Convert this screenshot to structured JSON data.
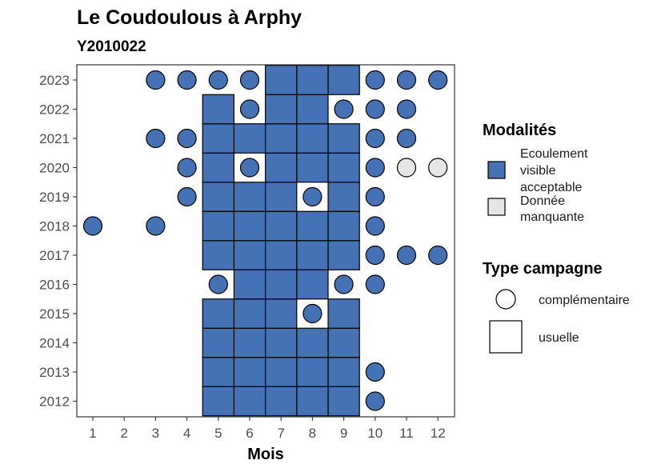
{
  "chart_data": {
    "type": "heatmap",
    "title": "Le Coudoulous à Arphy",
    "subtitle": "Y2010022",
    "xlabel": "Mois",
    "ylabel": "",
    "x_ticks": [
      "1",
      "2",
      "3",
      "4",
      "5",
      "6",
      "7",
      "8",
      "9",
      "10",
      "11",
      "12"
    ],
    "y_ticks": [
      "2012",
      "2013",
      "2014",
      "2015",
      "2016",
      "2017",
      "2018",
      "2019",
      "2020",
      "2021",
      "2022",
      "2023"
    ],
    "colors": {
      "ecoulement": "#4472b4",
      "manquante": "#e6e6e6",
      "outline": "#000000",
      "panel_border": "#333333"
    },
    "points": [
      {
        "year": 2023,
        "month": 3,
        "value": "Ecoulement visible acceptable",
        "campagne": "complémentaire"
      },
      {
        "year": 2023,
        "month": 4,
        "value": "Ecoulement visible acceptable",
        "campagne": "complémentaire"
      },
      {
        "year": 2023,
        "month": 5,
        "value": "Ecoulement visible acceptable",
        "campagne": "complémentaire"
      },
      {
        "year": 2023,
        "month": 6,
        "value": "Ecoulement visible acceptable",
        "campagne": "complémentaire"
      },
      {
        "year": 2023,
        "month": 7,
        "value": "Ecoulement visible acceptable",
        "campagne": "usuelle"
      },
      {
        "year": 2023,
        "month": 8,
        "value": "Ecoulement visible acceptable",
        "campagne": "usuelle"
      },
      {
        "year": 2023,
        "month": 9,
        "value": "Ecoulement visible acceptable",
        "campagne": "usuelle"
      },
      {
        "year": 2023,
        "month": 10,
        "value": "Ecoulement visible acceptable",
        "campagne": "complémentaire"
      },
      {
        "year": 2023,
        "month": 11,
        "value": "Ecoulement visible acceptable",
        "campagne": "complémentaire"
      },
      {
        "year": 2023,
        "month": 12,
        "value": "Ecoulement visible acceptable",
        "campagne": "complémentaire"
      },
      {
        "year": 2022,
        "month": 5,
        "value": "Ecoulement visible acceptable",
        "campagne": "usuelle"
      },
      {
        "year": 2022,
        "month": 6,
        "value": "Ecoulement visible acceptable",
        "campagne": "complémentaire"
      },
      {
        "year": 2022,
        "month": 7,
        "value": "Ecoulement visible acceptable",
        "campagne": "usuelle"
      },
      {
        "year": 2022,
        "month": 8,
        "value": "Ecoulement visible acceptable",
        "campagne": "usuelle"
      },
      {
        "year": 2022,
        "month": 9,
        "value": "Ecoulement visible acceptable",
        "campagne": "complémentaire"
      },
      {
        "year": 2022,
        "month": 10,
        "value": "Ecoulement visible acceptable",
        "campagne": "complémentaire"
      },
      {
        "year": 2022,
        "month": 11,
        "value": "Ecoulement visible acceptable",
        "campagne": "complémentaire"
      },
      {
        "year": 2021,
        "month": 3,
        "value": "Ecoulement visible acceptable",
        "campagne": "complémentaire"
      },
      {
        "year": 2021,
        "month": 4,
        "value": "Ecoulement visible acceptable",
        "campagne": "complémentaire"
      },
      {
        "year": 2021,
        "month": 5,
        "value": "Ecoulement visible acceptable",
        "campagne": "usuelle"
      },
      {
        "year": 2021,
        "month": 6,
        "value": "Ecoulement visible acceptable",
        "campagne": "usuelle"
      },
      {
        "year": 2021,
        "month": 7,
        "value": "Ecoulement visible acceptable",
        "campagne": "usuelle"
      },
      {
        "year": 2021,
        "month": 8,
        "value": "Ecoulement visible acceptable",
        "campagne": "usuelle"
      },
      {
        "year": 2021,
        "month": 9,
        "value": "Ecoulement visible acceptable",
        "campagne": "usuelle"
      },
      {
        "year": 2021,
        "month": 10,
        "value": "Ecoulement visible acceptable",
        "campagne": "complémentaire"
      },
      {
        "year": 2021,
        "month": 11,
        "value": "Ecoulement visible acceptable",
        "campagne": "complémentaire"
      },
      {
        "year": 2020,
        "month": 4,
        "value": "Ecoulement visible acceptable",
        "campagne": "complémentaire"
      },
      {
        "year": 2020,
        "month": 5,
        "value": "Ecoulement visible acceptable",
        "campagne": "usuelle"
      },
      {
        "year": 2020,
        "month": 6,
        "value": "Ecoulement visible acceptable",
        "campagne": "complémentaire"
      },
      {
        "year": 2020,
        "month": 7,
        "value": "Ecoulement visible acceptable",
        "campagne": "usuelle"
      },
      {
        "year": 2020,
        "month": 8,
        "value": "Ecoulement visible acceptable",
        "campagne": "usuelle"
      },
      {
        "year": 2020,
        "month": 9,
        "value": "Ecoulement visible acceptable",
        "campagne": "usuelle"
      },
      {
        "year": 2020,
        "month": 10,
        "value": "Ecoulement visible acceptable",
        "campagne": "complémentaire"
      },
      {
        "year": 2020,
        "month": 11,
        "value": "Donnée manquante",
        "campagne": "complémentaire"
      },
      {
        "year": 2020,
        "month": 12,
        "value": "Donnée manquante",
        "campagne": "complémentaire"
      },
      {
        "year": 2019,
        "month": 4,
        "value": "Ecoulement visible acceptable",
        "campagne": "complémentaire"
      },
      {
        "year": 2019,
        "month": 5,
        "value": "Ecoulement visible acceptable",
        "campagne": "usuelle"
      },
      {
        "year": 2019,
        "month": 6,
        "value": "Ecoulement visible acceptable",
        "campagne": "usuelle"
      },
      {
        "year": 2019,
        "month": 7,
        "value": "Ecoulement visible acceptable",
        "campagne": "usuelle"
      },
      {
        "year": 2019,
        "month": 8,
        "value": "Ecoulement visible acceptable",
        "campagne": "complémentaire"
      },
      {
        "year": 2019,
        "month": 9,
        "value": "Ecoulement visible acceptable",
        "campagne": "usuelle"
      },
      {
        "year": 2019,
        "month": 10,
        "value": "Ecoulement visible acceptable",
        "campagne": "complémentaire"
      },
      {
        "year": 2018,
        "month": 1,
        "value": "Ecoulement visible acceptable",
        "campagne": "complémentaire"
      },
      {
        "year": 2018,
        "month": 3,
        "value": "Ecoulement visible acceptable",
        "campagne": "complémentaire"
      },
      {
        "year": 2018,
        "month": 5,
        "value": "Ecoulement visible acceptable",
        "campagne": "usuelle"
      },
      {
        "year": 2018,
        "month": 6,
        "value": "Ecoulement visible acceptable",
        "campagne": "usuelle"
      },
      {
        "year": 2018,
        "month": 7,
        "value": "Ecoulement visible acceptable",
        "campagne": "usuelle"
      },
      {
        "year": 2018,
        "month": 8,
        "value": "Ecoulement visible acceptable",
        "campagne": "usuelle"
      },
      {
        "year": 2018,
        "month": 9,
        "value": "Ecoulement visible acceptable",
        "campagne": "usuelle"
      },
      {
        "year": 2018,
        "month": 10,
        "value": "Ecoulement visible acceptable",
        "campagne": "complémentaire"
      },
      {
        "year": 2017,
        "month": 5,
        "value": "Ecoulement visible acceptable",
        "campagne": "usuelle"
      },
      {
        "year": 2017,
        "month": 6,
        "value": "Ecoulement visible acceptable",
        "campagne": "usuelle"
      },
      {
        "year": 2017,
        "month": 7,
        "value": "Ecoulement visible acceptable",
        "campagne": "usuelle"
      },
      {
        "year": 2017,
        "month": 8,
        "value": "Ecoulement visible acceptable",
        "campagne": "usuelle"
      },
      {
        "year": 2017,
        "month": 9,
        "value": "Ecoulement visible acceptable",
        "campagne": "usuelle"
      },
      {
        "year": 2017,
        "month": 10,
        "value": "Ecoulement visible acceptable",
        "campagne": "complémentaire"
      },
      {
        "year": 2017,
        "month": 11,
        "value": "Ecoulement visible acceptable",
        "campagne": "complémentaire"
      },
      {
        "year": 2017,
        "month": 12,
        "value": "Ecoulement visible acceptable",
        "campagne": "complémentaire"
      },
      {
        "year": 2016,
        "month": 5,
        "value": "Ecoulement visible acceptable",
        "campagne": "complémentaire"
      },
      {
        "year": 2016,
        "month": 6,
        "value": "Ecoulement visible acceptable",
        "campagne": "usuelle"
      },
      {
        "year": 2016,
        "month": 7,
        "value": "Ecoulement visible acceptable",
        "campagne": "usuelle"
      },
      {
        "year": 2016,
        "month": 8,
        "value": "Ecoulement visible acceptable",
        "campagne": "usuelle"
      },
      {
        "year": 2016,
        "month": 9,
        "value": "Ecoulement visible acceptable",
        "campagne": "complémentaire"
      },
      {
        "year": 2016,
        "month": 10,
        "value": "Ecoulement visible acceptable",
        "campagne": "complémentaire"
      },
      {
        "year": 2015,
        "month": 5,
        "value": "Ecoulement visible acceptable",
        "campagne": "usuelle"
      },
      {
        "year": 2015,
        "month": 6,
        "value": "Ecoulement visible acceptable",
        "campagne": "usuelle"
      },
      {
        "year": 2015,
        "month": 7,
        "value": "Ecoulement visible acceptable",
        "campagne": "usuelle"
      },
      {
        "year": 2015,
        "month": 8,
        "value": "Ecoulement visible acceptable",
        "campagne": "complémentaire"
      },
      {
        "year": 2015,
        "month": 9,
        "value": "Ecoulement visible acceptable",
        "campagne": "usuelle"
      },
      {
        "year": 2014,
        "month": 5,
        "value": "Ecoulement visible acceptable",
        "campagne": "usuelle"
      },
      {
        "year": 2014,
        "month": 6,
        "value": "Ecoulement visible acceptable",
        "campagne": "usuelle"
      },
      {
        "year": 2014,
        "month": 7,
        "value": "Ecoulement visible acceptable",
        "campagne": "usuelle"
      },
      {
        "year": 2014,
        "month": 8,
        "value": "Ecoulement visible acceptable",
        "campagne": "usuelle"
      },
      {
        "year": 2014,
        "month": 9,
        "value": "Ecoulement visible acceptable",
        "campagne": "usuelle"
      },
      {
        "year": 2013,
        "month": 5,
        "value": "Ecoulement visible acceptable",
        "campagne": "usuelle"
      },
      {
        "year": 2013,
        "month": 6,
        "value": "Ecoulement visible acceptable",
        "campagne": "usuelle"
      },
      {
        "year": 2013,
        "month": 7,
        "value": "Ecoulement visible acceptable",
        "campagne": "usuelle"
      },
      {
        "year": 2013,
        "month": 8,
        "value": "Ecoulement visible acceptable",
        "campagne": "usuelle"
      },
      {
        "year": 2013,
        "month": 9,
        "value": "Ecoulement visible acceptable",
        "campagne": "usuelle"
      },
      {
        "year": 2013,
        "month": 10,
        "value": "Ecoulement visible acceptable",
        "campagne": "complémentaire"
      },
      {
        "year": 2012,
        "month": 5,
        "value": "Ecoulement visible acceptable",
        "campagne": "usuelle"
      },
      {
        "year": 2012,
        "month": 6,
        "value": "Ecoulement visible acceptable",
        "campagne": "usuelle"
      },
      {
        "year": 2012,
        "month": 7,
        "value": "Ecoulement visible acceptable",
        "campagne": "usuelle"
      },
      {
        "year": 2012,
        "month": 8,
        "value": "Ecoulement visible acceptable",
        "campagne": "usuelle"
      },
      {
        "year": 2012,
        "month": 9,
        "value": "Ecoulement visible acceptable",
        "campagne": "usuelle"
      },
      {
        "year": 2012,
        "month": 10,
        "value": "Ecoulement visible acceptable",
        "campagne": "complémentaire"
      }
    ],
    "legend": {
      "modalites_title": "Modalités",
      "modalites": [
        {
          "lines": [
            "Ecoulement",
            "visible",
            "acceptable"
          ],
          "value": "Ecoulement visible acceptable"
        },
        {
          "lines": [
            "Donnée",
            "manquante"
          ],
          "value": "Donnée manquante"
        }
      ],
      "campagne_title": "Type campagne",
      "campagne": [
        {
          "label": "complémentaire",
          "shape": "circle"
        },
        {
          "label": "usuelle",
          "shape": "square"
        }
      ],
      "position": "right"
    },
    "grid": false
  }
}
